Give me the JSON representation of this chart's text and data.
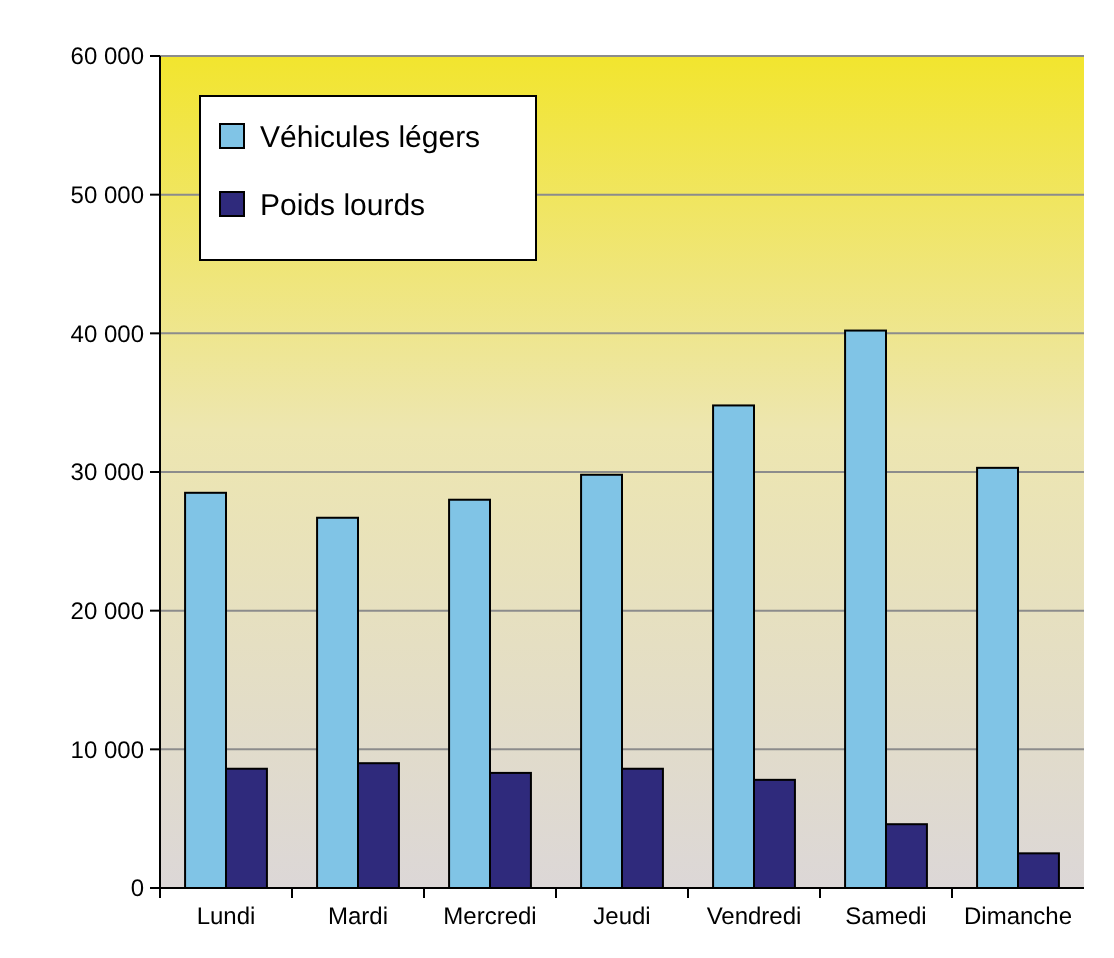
{
  "chart_data": {
    "type": "bar",
    "categories": [
      "Lundi",
      "Mardi",
      "Mercredi",
      "Jeudi",
      "Vendredi",
      "Samedi",
      "Dimanche"
    ],
    "series": [
      {
        "name": "Véhicules légers",
        "color": "#80c4e6",
        "values": [
          28500,
          26700,
          28000,
          29800,
          34800,
          40200,
          30300
        ]
      },
      {
        "name": "Poids lourds",
        "color": "#2f2a7c",
        "values": [
          8600,
          9000,
          8300,
          8600,
          7800,
          4600,
          2500
        ]
      }
    ],
    "ylim": [
      0,
      60000
    ],
    "yticks": [
      {
        "value": 0,
        "label": "0"
      },
      {
        "value": 10000,
        "label": "10 000"
      },
      {
        "value": 20000,
        "label": "20 000"
      },
      {
        "value": 30000,
        "label": "30 000"
      },
      {
        "value": 40000,
        "label": "40 000"
      },
      {
        "value": 50000,
        "label": "50 000"
      },
      {
        "value": 60000,
        "label": "60 000"
      }
    ],
    "grid": "y",
    "legend": "top left"
  }
}
